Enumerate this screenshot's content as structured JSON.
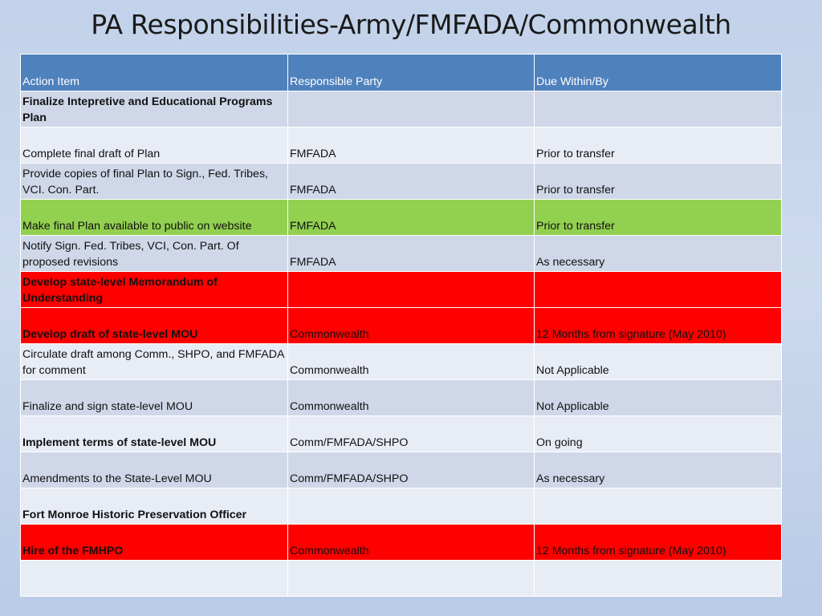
{
  "title": "PA Responsibilities-Army/FMFADA/Commonwealth",
  "columns": [
    "Action Item",
    "Responsible Party",
    "Due Within/By"
  ],
  "rows": [
    {
      "action": "Finalize Intepretive and Educational Programs Plan",
      "party": "",
      "due": ""
    },
    {
      "action": "Complete final draft of Plan",
      "party": "FMFADA",
      "due": "Prior to transfer"
    },
    {
      "action": "Provide copies of final Plan to Sign., Fed. Tribes, VCI. Con. Part.",
      "party": "FMFADA",
      "due": "Prior to transfer"
    },
    {
      "action": "Make final Plan available to public on website",
      "party": "FMFADA",
      "due": "Prior to transfer"
    },
    {
      "action": "Notify Sign. Fed. Tribes, VCI, Con. Part. Of proposed revisions",
      "party": "FMFADA",
      "due": "As necessary"
    },
    {
      "action": "Develop state-level Memorandum of Understanding",
      "party": "",
      "due": ""
    },
    {
      "action": "Develop draft of state-level MOU",
      "party": "Commonwealth",
      "due": "12 Months from signature (May 2010)"
    },
    {
      "action": "Circulate draft among Comm., SHPO, and FMFADA for comment",
      "party": "Commonwealth",
      "due": "Not Applicable"
    },
    {
      "action": "Finalize and sign state-level MOU",
      "party": "Commonwealth",
      "due": "Not Applicable"
    },
    {
      "action": "Implement terms of state-level MOU",
      "party": "Comm/FMFADA/SHPO",
      "due": "On going"
    },
    {
      "action": "Amendments to the State-Level MOU",
      "party": "Comm/FMFADA/SHPO",
      "due": "As necessary"
    },
    {
      "action": "Fort Monroe Historic Preservation Officer",
      "party": "",
      "due": ""
    },
    {
      "action": "Hire of the FMHPO",
      "party": "Commonwealth",
      "due": "12 Months from signature (May 2010)"
    },
    {
      "action": "",
      "party": "",
      "due": ""
    }
  ],
  "colors": {
    "header": "#4f81bd",
    "band_dark": "#cfd7e8",
    "band_light": "#e8ecf5",
    "highlight_green": "#92d050",
    "highlight_red": "#ff0000"
  }
}
